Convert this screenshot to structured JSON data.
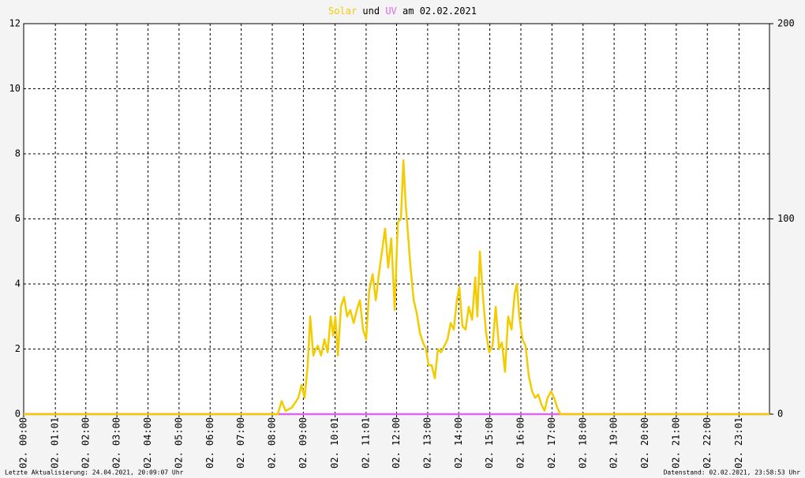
{
  "chart_data": {
    "type": "line",
    "title_joiner": "und",
    "title_suffix": "am 02.02.2021",
    "footer_left": "Letzte Aktualisierung: 24.04.2021, 20:09:07 Uhr",
    "footer_right": "Datenstand: 02.02.2021, 23:58:53 Uhr",
    "xlim": [
      0,
      24
    ],
    "xticks": [
      {
        "value": 0,
        "label": "02. 00:00"
      },
      {
        "value": 1.02,
        "label": "02. 01:01"
      },
      {
        "value": 2,
        "label": "02. 02:00"
      },
      {
        "value": 3,
        "label": "02. 03:00"
      },
      {
        "value": 4,
        "label": "02. 04:00"
      },
      {
        "value": 5,
        "label": "02. 05:00"
      },
      {
        "value": 6,
        "label": "02. 06:00"
      },
      {
        "value": 7,
        "label": "02. 07:00"
      },
      {
        "value": 8,
        "label": "02. 08:00"
      },
      {
        "value": 9,
        "label": "02. 09:00"
      },
      {
        "value": 10.02,
        "label": "02. 10:01"
      },
      {
        "value": 11.02,
        "label": "02. 11:01"
      },
      {
        "value": 12,
        "label": "02. 12:00"
      },
      {
        "value": 13,
        "label": "02. 13:00"
      },
      {
        "value": 14,
        "label": "02. 14:00"
      },
      {
        "value": 15,
        "label": "02. 15:00"
      },
      {
        "value": 16,
        "label": "02. 16:00"
      },
      {
        "value": 17,
        "label": "02. 17:00"
      },
      {
        "value": 18,
        "label": "02. 18:00"
      },
      {
        "value": 19,
        "label": "02. 19:00"
      },
      {
        "value": 20,
        "label": "02. 20:00"
      },
      {
        "value": 21,
        "label": "02. 21:00"
      },
      {
        "value": 22,
        "label": "02. 22:00"
      },
      {
        "value": 23.02,
        "label": "02. 23:01"
      }
    ],
    "ylim": [
      0,
      12
    ],
    "yticks": [
      0,
      2,
      4,
      6,
      8,
      10,
      12
    ],
    "y2lim": [
      0,
      200
    ],
    "y2ticks": [
      0,
      100,
      200
    ],
    "grid": true,
    "series": [
      {
        "name": "Solar",
        "color": "#f2cc00",
        "x": [
          0,
          8.03,
          8.18,
          8.3,
          8.43,
          8.63,
          8.84,
          8.94,
          9.04,
          9.14,
          9.22,
          9.32,
          9.4,
          9.47,
          9.57,
          9.68,
          9.78,
          9.88,
          9.96,
          10.03,
          10.11,
          10.21,
          10.31,
          10.41,
          10.51,
          10.62,
          10.72,
          10.82,
          10.92,
          11.02,
          11.12,
          11.23,
          11.33,
          11.43,
          11.53,
          11.63,
          11.73,
          11.83,
          11.94,
          12.04,
          12.14,
          12.22,
          12.29,
          12.37,
          12.44,
          12.55,
          12.65,
          12.75,
          12.85,
          12.95,
          13.03,
          13.13,
          13.23,
          13.33,
          13.43,
          13.54,
          13.64,
          13.74,
          13.84,
          13.94,
          14.02,
          14.12,
          14.22,
          14.32,
          14.43,
          14.53,
          14.6,
          14.68,
          14.78,
          14.88,
          14.98,
          15.09,
          15.19,
          15.3,
          15.39,
          15.49,
          15.59,
          15.7,
          15.8,
          15.87,
          15.95,
          16.05,
          16.15,
          16.25,
          16.36,
          16.46,
          16.56,
          16.66,
          16.76,
          16.86,
          16.97,
          17.07,
          17.17,
          17.27,
          24
        ],
        "values": [
          0,
          0,
          0,
          0.4,
          0.1,
          0.2,
          0.5,
          0.9,
          0.5,
          1.5,
          3.0,
          1.8,
          2.0,
          2.1,
          1.8,
          2.3,
          1.9,
          3.0,
          2.4,
          3.0,
          1.8,
          3.3,
          3.6,
          3.0,
          3.2,
          2.8,
          3.2,
          3.5,
          2.6,
          2.3,
          3.8,
          4.3,
          3.5,
          4.3,
          5.0,
          5.7,
          4.5,
          5.4,
          3.2,
          5.9,
          6.0,
          7.8,
          6.5,
          5.5,
          4.6,
          3.5,
          3.1,
          2.5,
          2.2,
          2.0,
          1.5,
          1.5,
          1.1,
          2.0,
          1.9,
          2.1,
          2.3,
          2.8,
          2.6,
          3.5,
          3.9,
          2.7,
          2.6,
          3.3,
          2.9,
          4.2,
          3.0,
          5.0,
          3.6,
          2.5,
          1.9,
          2.1,
          3.3,
          2.0,
          2.2,
          1.3,
          3.0,
          2.6,
          3.7,
          4.0,
          3.0,
          2.3,
          2.1,
          1.2,
          0.7,
          0.5,
          0.6,
          0.3,
          0.1,
          0.5,
          0.7,
          0.5,
          0.2,
          0,
          0
        ]
      },
      {
        "name": "UV",
        "color": "#dd66ee",
        "x": [
          0,
          24
        ],
        "values": [
          0,
          0
        ]
      }
    ]
  }
}
